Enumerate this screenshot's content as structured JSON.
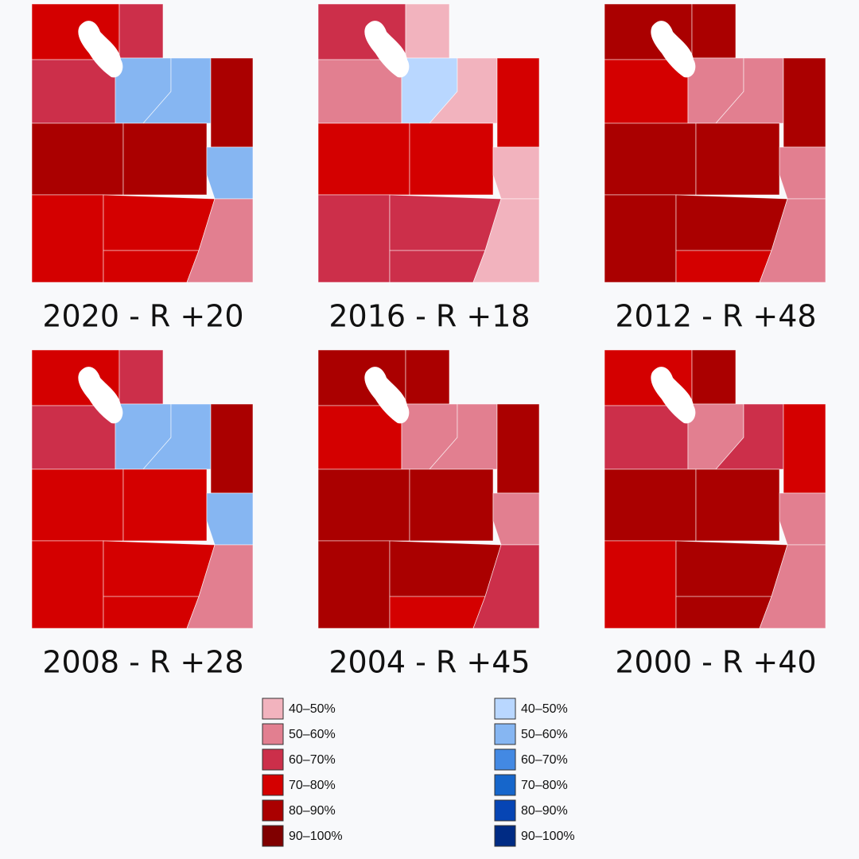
{
  "maps": [
    {
      "title": "2020 - R +20",
      "region_colors": [
        "#d40000",
        "#cc2f4a",
        "#cc2f4a",
        "#86b6f2",
        "#86b6f2",
        "#aa0000",
        "#aa0000",
        "#aa0000",
        "#86b6f2",
        "#d40000",
        "#d40000",
        "#d40000",
        "#e27f90"
      ]
    },
    {
      "title": "2016 - R +18",
      "region_colors": [
        "#cc2f4a",
        "#f2b3be",
        "#e27f90",
        "#b9d7ff",
        "#f2b3be",
        "#d40000",
        "#d40000",
        "#d40000",
        "#f2b3be",
        "#cc2f4a",
        "#cc2f4a",
        "#cc2f4a",
        "#f2b3be"
      ]
    },
    {
      "title": "2012 - R +48",
      "region_colors": [
        "#aa0000",
        "#aa0000",
        "#d40000",
        "#e27f90",
        "#e27f90",
        "#aa0000",
        "#aa0000",
        "#aa0000",
        "#e27f90",
        "#aa0000",
        "#aa0000",
        "#d40000",
        "#e27f90"
      ]
    },
    {
      "title": "2008 - R +28",
      "region_colors": [
        "#d40000",
        "#cc2f4a",
        "#cc2f4a",
        "#86b6f2",
        "#86b6f2",
        "#aa0000",
        "#d40000",
        "#d40000",
        "#86b6f2",
        "#d40000",
        "#d40000",
        "#d40000",
        "#e27f90"
      ]
    },
    {
      "title": "2004 - R +45",
      "region_colors": [
        "#aa0000",
        "#aa0000",
        "#d40000",
        "#e27f90",
        "#e27f90",
        "#aa0000",
        "#aa0000",
        "#aa0000",
        "#e27f90",
        "#aa0000",
        "#aa0000",
        "#d40000",
        "#cc2f4a"
      ]
    },
    {
      "title": "2000 - R +40",
      "region_colors": [
        "#d40000",
        "#aa0000",
        "#cc2f4a",
        "#e27f90",
        "#cc2f4a",
        "#d40000",
        "#aa0000",
        "#aa0000",
        "#e27f90",
        "#d40000",
        "#aa0000",
        "#aa0000",
        "#e27f90"
      ]
    }
  ],
  "legend": {
    "republican": [
      {
        "label": "40–50%",
        "color": "#f2b3be"
      },
      {
        "label": "50–60%",
        "color": "#e27f90"
      },
      {
        "label": "60–70%",
        "color": "#cc2f4a"
      },
      {
        "label": "70–80%",
        "color": "#d40000"
      },
      {
        "label": "80–90%",
        "color": "#aa0000"
      },
      {
        "label": "90–100%",
        "color": "#800000"
      }
    ],
    "democratic": [
      {
        "label": "40–50%",
        "color": "#b9d7ff"
      },
      {
        "label": "50–60%",
        "color": "#86b6f2"
      },
      {
        "label": "60–70%",
        "color": "#4389e3"
      },
      {
        "label": "70–80%",
        "color": "#1666cb"
      },
      {
        "label": "80–90%",
        "color": "#0645b4"
      },
      {
        "label": "90–100%",
        "color": "#002b84"
      }
    ]
  }
}
